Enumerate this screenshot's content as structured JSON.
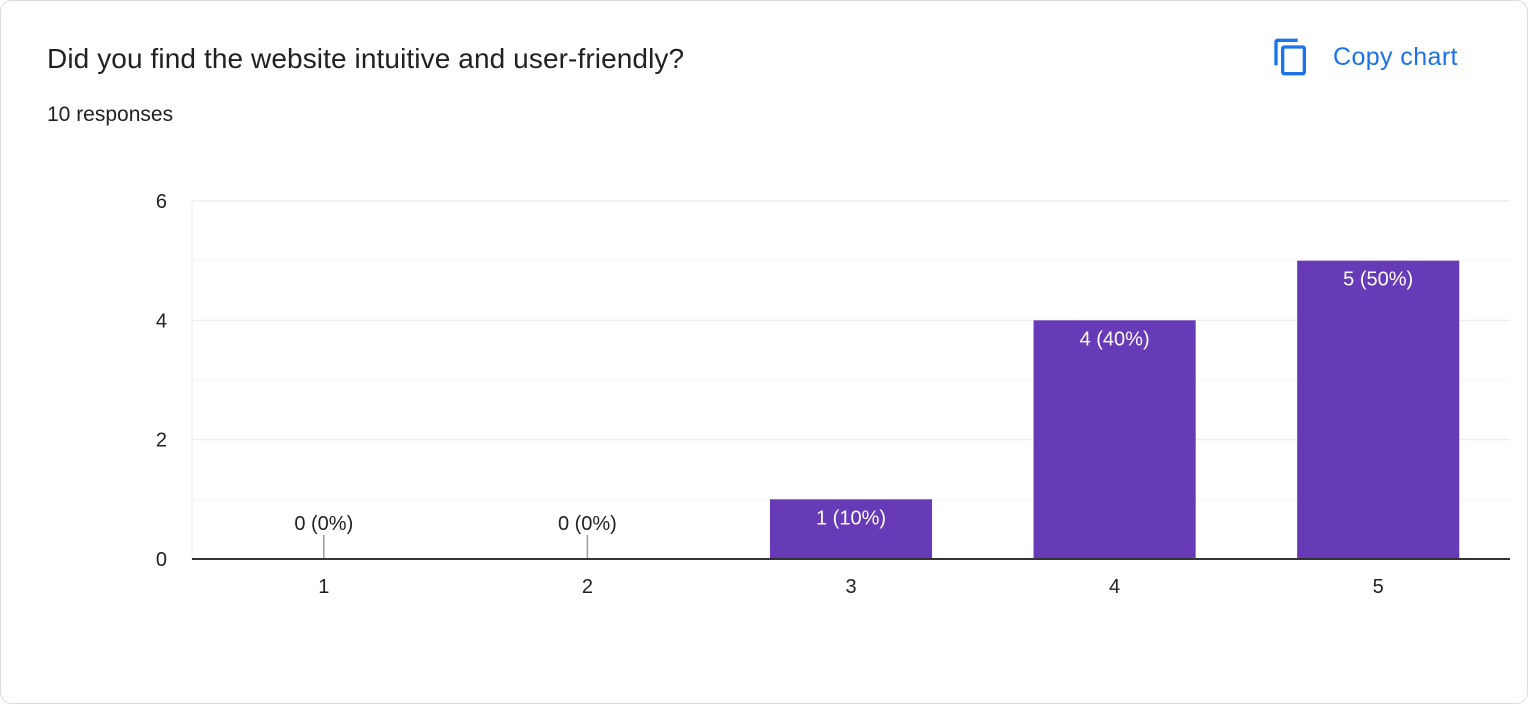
{
  "question": {
    "title": "Did you find the website intuitive and user-friendly?",
    "responses": "10 responses"
  },
  "actions": {
    "copy_chart_label": "Copy chart",
    "copy_icon": "copy-icon"
  },
  "colors": {
    "bar": "#673ab7",
    "accent": "#1a73e8",
    "text": "#202124",
    "gridline": "#ebebeb",
    "axis": "#333333"
  },
  "chart_data": {
    "type": "bar",
    "title": "Did you find the website intuitive and user-friendly?",
    "xlabel": "",
    "ylabel": "",
    "categories": [
      "1",
      "2",
      "3",
      "4",
      "5"
    ],
    "values": [
      0,
      0,
      1,
      4,
      5
    ],
    "data_labels": [
      "0 (0%)",
      "0 (0%)",
      "1 (10%)",
      "4 (40%)",
      "5 (50%)"
    ],
    "ylim": [
      0,
      6
    ],
    "yticks": [
      0,
      2,
      4,
      6
    ],
    "minor_gridlines": [
      1,
      3,
      5
    ],
    "grid": true,
    "legend": "none"
  }
}
